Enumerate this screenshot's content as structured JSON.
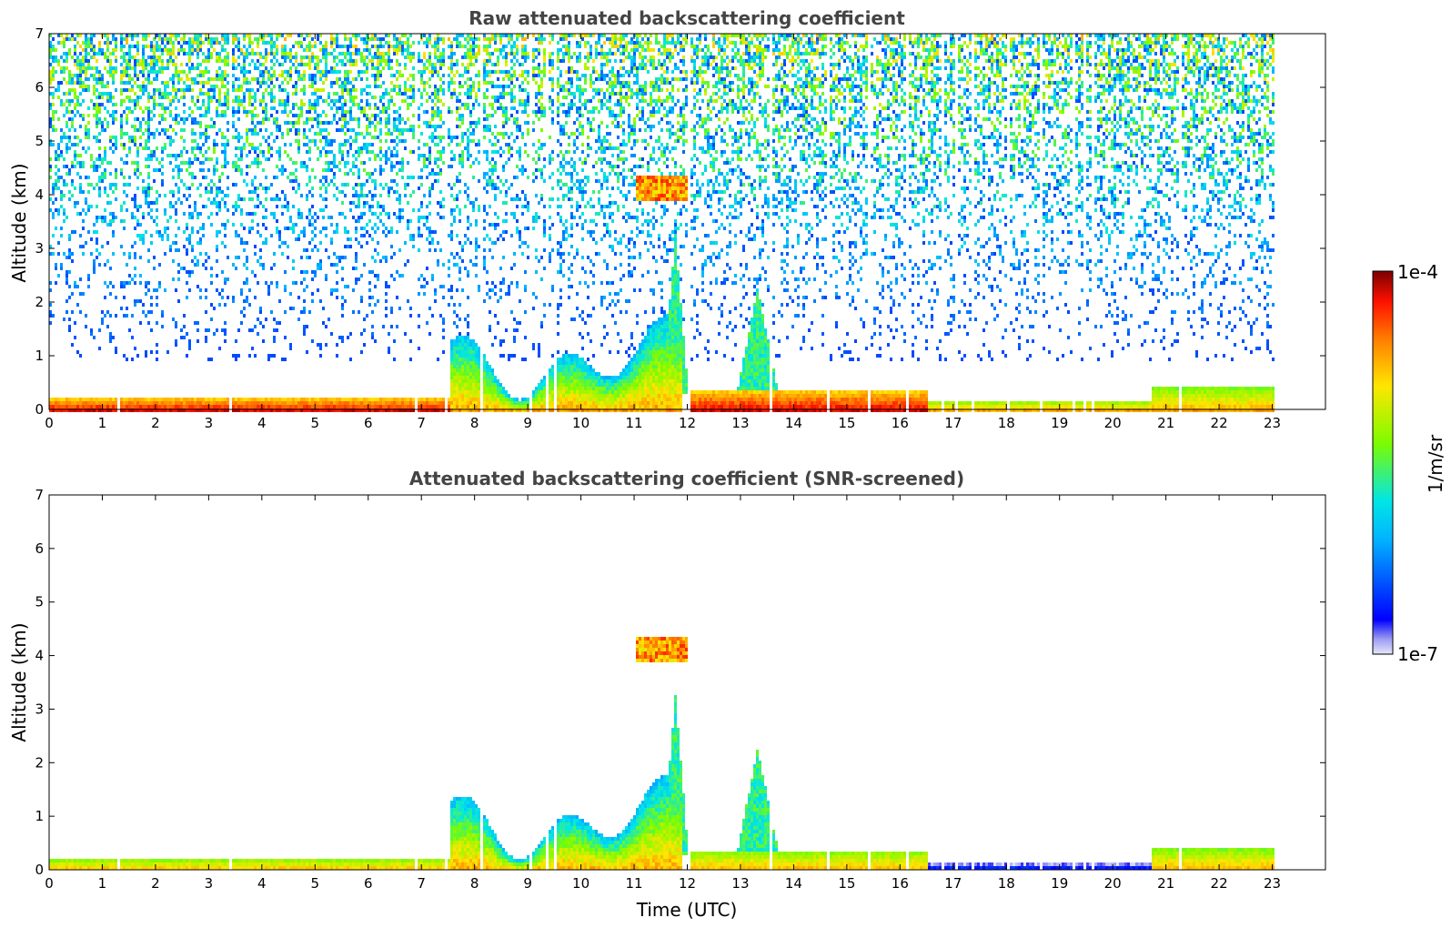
{
  "chart_data": [
    {
      "type": "heatmap",
      "title": "Raw attenuated backscattering coefficient",
      "xlabel": "",
      "ylabel": "Altitude (km)",
      "xlim": [
        0,
        24
      ],
      "ylim": [
        0,
        7
      ],
      "xticks": [
        "0",
        "1",
        "2",
        "3",
        "4",
        "5",
        "6",
        "7",
        "8",
        "9",
        "10",
        "11",
        "12",
        "13",
        "14",
        "15",
        "16",
        "17",
        "18",
        "19",
        "20",
        "21",
        "22",
        "23"
      ],
      "yticks": [
        "0",
        "1",
        "2",
        "3",
        "4",
        "5",
        "6",
        "7"
      ],
      "data_end_time": 23,
      "features": [
        {
          "kind": "noise",
          "t0": 0,
          "t1": 23,
          "z0": 0.9,
          "z1": 7,
          "level": "low-mid"
        },
        {
          "kind": "surface_layer",
          "t0": 0,
          "t1": 7.5,
          "z0": 0,
          "z1": 0.25,
          "level": "max"
        },
        {
          "kind": "boundary_layer",
          "t0": 7.5,
          "t1": 11.9,
          "z0": 0,
          "z1": 1.8,
          "level": "high"
        },
        {
          "kind": "cloud",
          "t0": 11.0,
          "t1": 12.0,
          "z0": 3.9,
          "z1": 4.4,
          "level": "high"
        },
        {
          "kind": "convective_plume",
          "t0": 11.5,
          "t1": 12.0,
          "z0": 0.3,
          "z1": 3.3,
          "level": "mid"
        },
        {
          "kind": "convective_plume",
          "t0": 12.9,
          "t1": 13.7,
          "z0": 0.3,
          "z1": 2.3,
          "level": "mid"
        },
        {
          "kind": "surface_layer",
          "t0": 12.0,
          "t1": 16.5,
          "z0": 0,
          "z1": 0.4,
          "level": "max"
        },
        {
          "kind": "surface_layer",
          "t0": 16.5,
          "t1": 20.7,
          "z0": 0,
          "z1": 0.2,
          "level": "high"
        },
        {
          "kind": "surface_layer",
          "t0": 20.7,
          "t1": 23,
          "z0": 0,
          "z1": 0.45,
          "level": "high"
        }
      ]
    },
    {
      "type": "heatmap",
      "title": "Attenuated backscattering coefficient (SNR-screened)",
      "xlabel": "Time (UTC)",
      "ylabel": "Altitude (km)",
      "xlim": [
        0,
        24
      ],
      "ylim": [
        0,
        7
      ],
      "xticks": [
        "0",
        "1",
        "2",
        "3",
        "4",
        "5",
        "6",
        "7",
        "8",
        "9",
        "10",
        "11",
        "12",
        "13",
        "14",
        "15",
        "16",
        "17",
        "18",
        "19",
        "20",
        "21",
        "22",
        "23"
      ],
      "yticks": [
        "0",
        "1",
        "2",
        "3",
        "4",
        "5",
        "6",
        "7"
      ],
      "data_end_time": 23,
      "features": [
        {
          "kind": "surface_layer",
          "t0": 0,
          "t1": 7.5,
          "z0": 0,
          "z1": 0.25,
          "level": "high"
        },
        {
          "kind": "boundary_layer",
          "t0": 7.5,
          "t1": 11.9,
          "z0": 0,
          "z1": 1.8,
          "level": "high"
        },
        {
          "kind": "cloud",
          "t0": 11.0,
          "t1": 12.0,
          "z0": 3.9,
          "z1": 4.4,
          "level": "high"
        },
        {
          "kind": "convective_plume",
          "t0": 11.5,
          "t1": 12.0,
          "z0": 0.3,
          "z1": 3.3,
          "level": "mid"
        },
        {
          "kind": "convective_plume",
          "t0": 12.9,
          "t1": 13.7,
          "z0": 0.3,
          "z1": 2.3,
          "level": "mid"
        },
        {
          "kind": "surface_layer",
          "t0": 12.0,
          "t1": 16.5,
          "z0": 0,
          "z1": 0.4,
          "level": "high"
        },
        {
          "kind": "surface_layer",
          "t0": 16.5,
          "t1": 20.7,
          "z0": 0,
          "z1": 0.2,
          "level": "low"
        },
        {
          "kind": "surface_layer",
          "t0": 20.7,
          "t1": 23,
          "z0": 0,
          "z1": 0.45,
          "level": "high"
        }
      ]
    }
  ],
  "colorbar": {
    "label": "1/m/sr",
    "max_label": "1e-4",
    "min_label": "1e-7",
    "colormap": "jet",
    "min": 1e-07,
    "max": 0.0001,
    "scale": "log"
  }
}
